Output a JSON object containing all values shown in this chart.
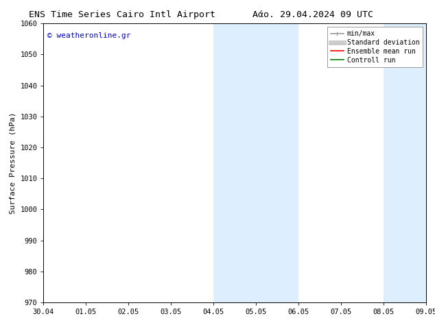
{
  "title_left": "ENS Time Series Cairo Intl Airport",
  "title_right": "Αάο. 29.04.2024 09 UTC",
  "ylabel": "Surface Pressure (hPa)",
  "ylim": [
    970,
    1060
  ],
  "yticks": [
    970,
    980,
    990,
    1000,
    1010,
    1020,
    1030,
    1040,
    1050,
    1060
  ],
  "xtick_labels": [
    "30.04",
    "01.05",
    "02.05",
    "03.05",
    "04.05",
    "05.05",
    "06.05",
    "07.05",
    "08.05",
    "09.05"
  ],
  "watermark": "© weatheronline.gr",
  "watermark_color": "#0000cc",
  "bg_color": "#ffffff",
  "plot_bg_color": "#ffffff",
  "shaded_regions": [
    {
      "xstart": 4,
      "xend": 6,
      "color": "#ddeeff"
    },
    {
      "xstart": 8,
      "xend": 9,
      "color": "#ddeeff"
    }
  ],
  "legend_items": [
    {
      "label": "min/max",
      "color": "#999999",
      "lw": 1.2
    },
    {
      "label": "Standard deviation",
      "color": "#cccccc",
      "lw": 5
    },
    {
      "label": "Ensemble mean run",
      "color": "#ff0000",
      "lw": 1.2
    },
    {
      "label": "Controll run",
      "color": "#008000",
      "lw": 1.2
    }
  ],
  "title_fontsize": 9.5,
  "tick_fontsize": 7.5,
  "ylabel_fontsize": 8,
  "legend_fontsize": 7,
  "watermark_fontsize": 8
}
